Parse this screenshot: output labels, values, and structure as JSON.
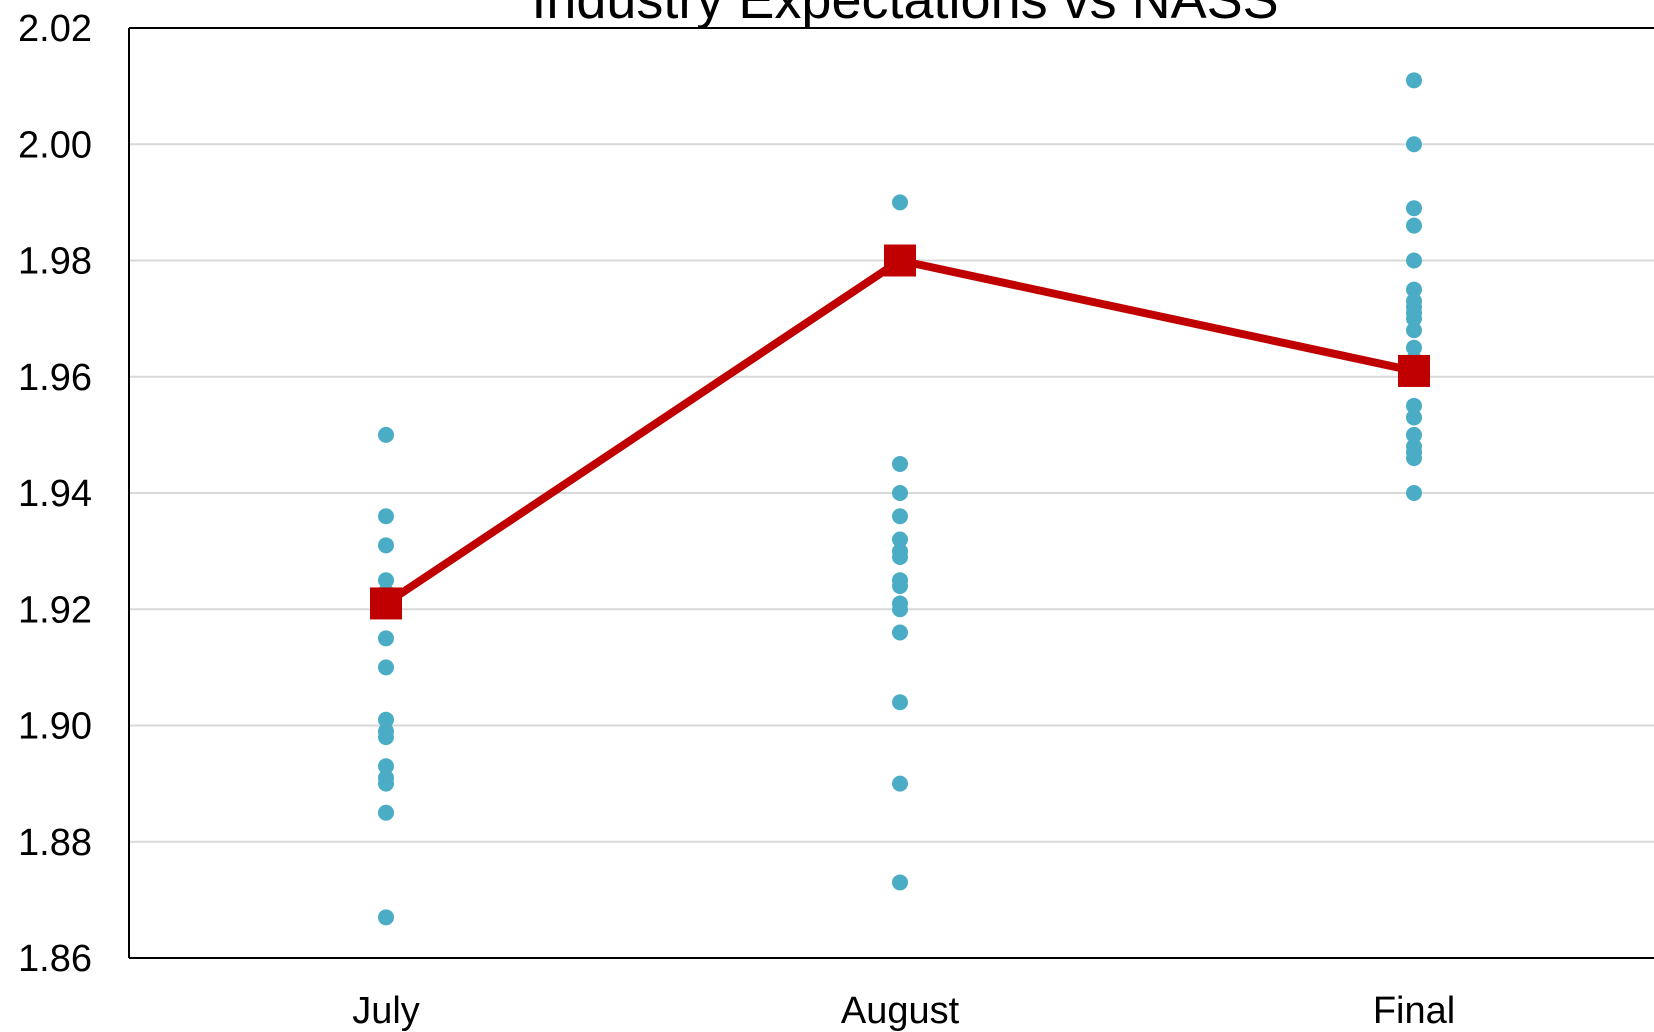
{
  "chart_data": {
    "type": "scatter",
    "title": "Industry Expectations vs NASS",
    "xlabel": "",
    "ylabel": "",
    "categories": [
      "July",
      "August",
      "Final"
    ],
    "ylim": [
      1.86,
      2.02
    ],
    "yticks": [
      "1.86",
      "1.88",
      "1.90",
      "1.92",
      "1.94",
      "1.96",
      "1.98",
      "2.00",
      "2.02"
    ],
    "grid": "horizontal",
    "legend": "none",
    "series": [
      {
        "kind": "scatter",
        "color": "#4bacc6",
        "points": [
          {
            "x": "July",
            "y": 1.95
          },
          {
            "x": "July",
            "y": 1.936
          },
          {
            "x": "July",
            "y": 1.931
          },
          {
            "x": "July",
            "y": 1.925
          },
          {
            "x": "July",
            "y": 1.923
          },
          {
            "x": "July",
            "y": 1.92
          },
          {
            "x": "July",
            "y": 1.915
          },
          {
            "x": "July",
            "y": 1.91
          },
          {
            "x": "July",
            "y": 1.901
          },
          {
            "x": "July",
            "y": 1.899
          },
          {
            "x": "July",
            "y": 1.898
          },
          {
            "x": "July",
            "y": 1.893
          },
          {
            "x": "July",
            "y": 1.891
          },
          {
            "x": "July",
            "y": 1.89
          },
          {
            "x": "July",
            "y": 1.885
          },
          {
            "x": "July",
            "y": 1.867
          },
          {
            "x": "August",
            "y": 1.99
          },
          {
            "x": "August",
            "y": 1.945
          },
          {
            "x": "August",
            "y": 1.94
          },
          {
            "x": "August",
            "y": 1.936
          },
          {
            "x": "August",
            "y": 1.932
          },
          {
            "x": "August",
            "y": 1.93
          },
          {
            "x": "August",
            "y": 1.929
          },
          {
            "x": "August",
            "y": 1.925
          },
          {
            "x": "August",
            "y": 1.924
          },
          {
            "x": "August",
            "y": 1.921
          },
          {
            "x": "August",
            "y": 1.92
          },
          {
            "x": "August",
            "y": 1.916
          },
          {
            "x": "August",
            "y": 1.904
          },
          {
            "x": "August",
            "y": 1.89
          },
          {
            "x": "August",
            "y": 1.873
          },
          {
            "x": "Final",
            "y": 2.011
          },
          {
            "x": "Final",
            "y": 2.0
          },
          {
            "x": "Final",
            "y": 1.989
          },
          {
            "x": "Final",
            "y": 1.986
          },
          {
            "x": "Final",
            "y": 1.98
          },
          {
            "x": "Final",
            "y": 1.975
          },
          {
            "x": "Final",
            "y": 1.973
          },
          {
            "x": "Final",
            "y": 1.972
          },
          {
            "x": "Final",
            "y": 1.971
          },
          {
            "x": "Final",
            "y": 1.97
          },
          {
            "x": "Final",
            "y": 1.968
          },
          {
            "x": "Final",
            "y": 1.965
          },
          {
            "x": "Final",
            "y": 1.963
          },
          {
            "x": "Final",
            "y": 1.96
          },
          {
            "x": "Final",
            "y": 1.955
          },
          {
            "x": "Final",
            "y": 1.953
          },
          {
            "x": "Final",
            "y": 1.95
          },
          {
            "x": "Final",
            "y": 1.948
          },
          {
            "x": "Final",
            "y": 1.947
          },
          {
            "x": "Final",
            "y": 1.946
          },
          {
            "x": "Final",
            "y": 1.94
          }
        ]
      },
      {
        "kind": "line",
        "color": "#c00000",
        "marker": "square",
        "points": [
          {
            "x": "July",
            "y": 1.921
          },
          {
            "x": "August",
            "y": 1.98
          },
          {
            "x": "Final",
            "y": 1.961
          }
        ]
      }
    ]
  }
}
